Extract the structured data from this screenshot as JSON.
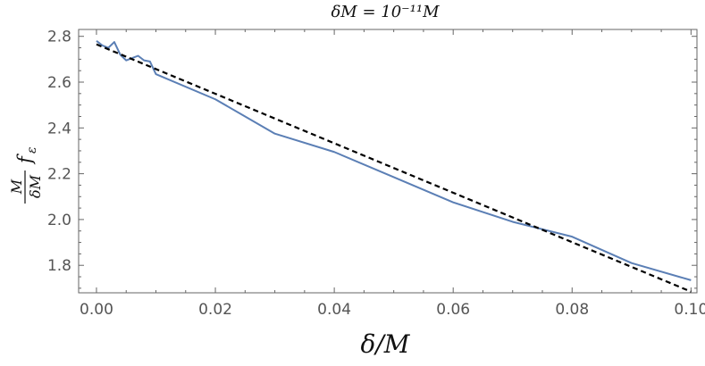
{
  "chart_data": {
    "type": "line",
    "title": "δM = 10⁻¹¹M",
    "xlabel": "δ/M",
    "ylabel": {
      "numerator": "M",
      "denominator": "δM",
      "factor": "f",
      "subscript": "ε"
    },
    "xlim": [
      -0.003,
      0.101
    ],
    "ylim": [
      1.68,
      2.83
    ],
    "x_ticks": [
      0.0,
      0.02,
      0.04,
      0.06,
      0.08,
      0.1
    ],
    "x_tick_labels": [
      "0.00",
      "0.02",
      "0.04",
      "0.06",
      "0.08",
      "0.10"
    ],
    "y_ticks": [
      1.8,
      2.0,
      2.2,
      2.4,
      2.6,
      2.8
    ],
    "y_tick_labels": [
      "1.8",
      "2.0",
      "2.2",
      "2.4",
      "2.6",
      "2.8"
    ],
    "grid": false,
    "series": [
      {
        "style": "solid",
        "color": "#5b7fb5",
        "x": [
          0.0,
          0.001,
          0.002,
          0.003,
          0.004,
          0.005,
          0.006,
          0.007,
          0.008,
          0.009,
          0.01,
          0.02,
          0.03,
          0.04,
          0.05,
          0.06,
          0.07,
          0.08,
          0.09,
          0.1
        ],
        "y": [
          2.78,
          2.76,
          2.75,
          2.775,
          2.72,
          2.695,
          2.705,
          2.715,
          2.695,
          2.69,
          2.635,
          2.525,
          2.375,
          2.295,
          2.185,
          2.075,
          1.99,
          1.925,
          1.81,
          1.735
        ]
      },
      {
        "style": "dashed",
        "color": "#000000",
        "x": [
          0.0,
          0.1
        ],
        "y": [
          2.765,
          1.685
        ]
      }
    ]
  }
}
